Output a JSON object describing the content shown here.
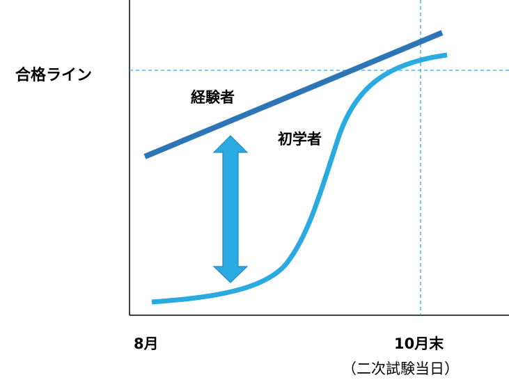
{
  "labels": {
    "pass_line": "合格ライン",
    "experienced": "経験者",
    "beginner": "初学者",
    "x_start": "8月",
    "x_end": "10月末",
    "x_end_note": "（二次試験当日）"
  },
  "colors": {
    "experienced_line": "#2e75b6",
    "beginner_line": "#29abe2",
    "gap_arrow": "#29abe2",
    "reference_lines": "#29abe2",
    "axes": "#000000"
  }
}
